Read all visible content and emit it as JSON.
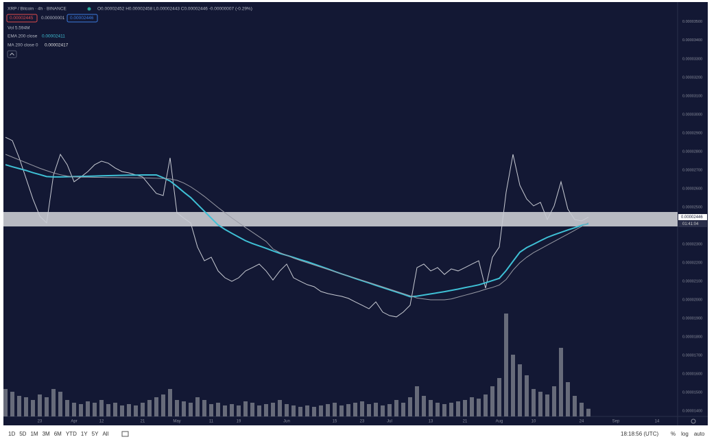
{
  "header": {
    "ohlc": "O0.00002452 H0.00002458 L0.00002443 C0.00002446 -0.00000007 (-0.29%)",
    "sell": "0.00002445",
    "spread": "0.00000001",
    "buy": "0.00002446",
    "volume": "Vol 5.594M",
    "ema_value": "0.00002411",
    "ma_value": "0.00002417"
  },
  "price_tag": "0.00002446",
  "countdown": "01:41:04",
  "toolbar": {
    "ranges": [
      "1D",
      "5D",
      "1M",
      "3M",
      "6M",
      "YTD",
      "1Y",
      "5Y",
      "All"
    ],
    "clock": "18:18:56 (UTC)",
    "options": [
      "%",
      "log",
      "auto"
    ]
  },
  "chart_data": {
    "type": "line",
    "categories": [
      null,
      null,
      null,
      null,
      null,
      "23",
      null,
      null,
      null,
      null,
      "Apr",
      null,
      null,
      null,
      "12",
      null,
      null,
      null,
      null,
      null,
      "21",
      null,
      null,
      null,
      null,
      "May",
      null,
      null,
      null,
      null,
      "11",
      null,
      null,
      null,
      "19",
      null,
      null,
      null,
      null,
      null,
      null,
      "Jun",
      null,
      null,
      null,
      null,
      null,
      null,
      "15",
      null,
      null,
      null,
      "23",
      null,
      null,
      null,
      "Jul",
      null,
      null,
      null,
      null,
      null,
      "13",
      null,
      null,
      null,
      null,
      "21",
      null,
      null,
      null,
      null,
      "Aug",
      null,
      null,
      null,
      null,
      "10",
      null,
      null,
      null,
      null,
      null,
      null,
      "24",
      null,
      null,
      null,
      null,
      "Sep",
      null,
      null,
      null,
      null,
      null,
      "14"
    ],
    "series": [
      {
        "name": "XRP / Bitcoin · 4h · BINANCE",
        "color": "#c9ccd4",
        "values": [
          2.877e-05,
          2.859e-05,
          2.766e-05,
          2.655e-05,
          2.544e-05,
          2.452e-05,
          2.415e-05,
          2.674e-05,
          2.785e-05,
          2.729e-05,
          2.637e-05,
          2.663e-05,
          2.692e-05,
          2.729e-05,
          2.748e-05,
          2.737e-05,
          2.711e-05,
          2.692e-05,
          2.685e-05,
          2.674e-05,
          2.663e-05,
          2.618e-05,
          2.574e-05,
          2.563e-05,
          2.766e-05,
          2.47e-05,
          2.441e-05,
          2.415e-05,
          2.285e-05,
          2.211e-05,
          2.23e-05,
          2.156e-05,
          2.119e-05,
          2.1e-05,
          2.119e-05,
          2.156e-05,
          2.174e-05,
          2.193e-05,
          2.156e-05,
          2.107e-05,
          2.156e-05,
          2.193e-05,
          2.119e-05,
          2.1e-05,
          2.082e-05,
          2.071e-05,
          2.045e-05,
          2.034e-05,
          2.026e-05,
          2.019e-05,
          2.008e-05,
          1.989e-05,
          1.971e-05,
          1.952e-05,
          1.989e-05,
          1.934e-05,
          1.915e-05,
          1.908e-05,
          1.934e-05,
          1.971e-05,
          2.174e-05,
          2.193e-05,
          2.156e-05,
          2.174e-05,
          2.137e-05,
          2.167e-05,
          2.156e-05,
          2.174e-05,
          2.193e-05,
          2.211e-05,
          2.063e-05,
          2.23e-05,
          2.285e-05,
          2.581e-05,
          2.785e-05,
          2.618e-05,
          2.544e-05,
          2.507e-05,
          2.526e-05,
          2.433e-05,
          2.507e-05,
          2.637e-05,
          2.489e-05,
          2.433e-05,
          2.426e-05,
          2.446e-05,
          null,
          null,
          null,
          null,
          null,
          null,
          null,
          null,
          null,
          null
        ]
      },
      {
        "name": "EMA 200 close",
        "color": "#3fc1d6",
        "values": [
          2.729e-05,
          2.718e-05,
          2.708e-05,
          2.698e-05,
          2.686e-05,
          2.676e-05,
          2.665e-05,
          2.663e-05,
          2.663e-05,
          2.664e-05,
          2.665e-05,
          2.666e-05,
          2.667e-05,
          2.668e-05,
          2.669e-05,
          2.67e-05,
          2.671e-05,
          2.672e-05,
          2.673e-05,
          2.673e-05,
          2.674e-05,
          2.674e-05,
          2.674e-05,
          2.659e-05,
          2.641e-05,
          2.612e-05,
          2.581e-05,
          2.552e-05,
          2.515e-05,
          2.478e-05,
          2.441e-05,
          2.404e-05,
          2.38e-05,
          2.359e-05,
          2.339e-05,
          2.319e-05,
          2.304e-05,
          2.291e-05,
          2.278e-05,
          2.264e-05,
          2.251e-05,
          2.24e-05,
          2.229e-05,
          2.217e-05,
          2.206e-05,
          2.193e-05,
          2.18e-05,
          2.167e-05,
          2.153e-05,
          2.14e-05,
          2.128e-05,
          2.115e-05,
          2.103e-05,
          2.091e-05,
          2.078e-05,
          2.066e-05,
          2.054e-05,
          2.042e-05,
          2.03e-05,
          2.017e-05,
          2.02e-05,
          2.026e-05,
          2.032e-05,
          2.038e-05,
          2.044e-05,
          2.051e-05,
          2.058e-05,
          2.066e-05,
          2.073e-05,
          2.081e-05,
          2.092e-05,
          2.104e-05,
          2.116e-05,
          2.158e-05,
          2.208e-05,
          2.257e-05,
          2.282e-05,
          2.3e-05,
          2.319e-05,
          2.337e-05,
          2.351e-05,
          2.364e-05,
          2.377e-05,
          2.389e-05,
          2.402e-05,
          2.411e-05,
          null,
          null,
          null,
          null,
          null,
          null,
          null,
          null,
          null,
          null
        ]
      },
      {
        "name": "MA 200 close 0",
        "color": "#9a9ca6",
        "values": [
          2.785e-05,
          2.77e-05,
          2.755e-05,
          2.74e-05,
          2.725e-05,
          2.71e-05,
          2.697e-05,
          2.685e-05,
          2.675e-05,
          2.668e-05,
          2.663e-05,
          2.662e-05,
          2.662e-05,
          2.661e-05,
          2.661e-05,
          2.66e-05,
          2.66e-05,
          2.659e-05,
          2.659e-05,
          2.658e-05,
          2.658e-05,
          2.657e-05,
          2.656e-05,
          2.655e-05,
          2.652e-05,
          2.645e-05,
          2.63e-05,
          2.61e-05,
          2.585e-05,
          2.558e-05,
          2.528e-05,
          2.498e-05,
          2.47e-05,
          2.442e-05,
          2.416e-05,
          2.39e-05,
          2.365e-05,
          2.34e-05,
          2.315e-05,
          2.275e-05,
          2.255e-05,
          2.24e-05,
          2.225e-05,
          2.212e-05,
          2.2e-05,
          2.188e-05,
          2.176e-05,
          2.164e-05,
          2.152e-05,
          2.14e-05,
          2.129e-05,
          2.118e-05,
          2.106e-05,
          2.094e-05,
          2.082e-05,
          2.07e-05,
          2.058e-05,
          2.046e-05,
          2.034e-05,
          2.022e-05,
          2.01e-05,
          2.005e-05,
          2e-05,
          2e-05,
          2e-05,
          2.005e-05,
          2.015e-05,
          2.025e-05,
          2.035e-05,
          2.045e-05,
          2.057e-05,
          2.067e-05,
          2.08e-05,
          2.11e-05,
          2.16e-05,
          2.2e-05,
          2.23e-05,
          2.255e-05,
          2.275e-05,
          2.295e-05,
          2.315e-05,
          2.335e-05,
          2.355e-05,
          2.375e-05,
          2.396e-05,
          2.417e-05,
          null,
          null,
          null,
          null,
          null,
          null,
          null,
          null,
          null,
          null
        ]
      }
    ],
    "volume": {
      "color": "#8c8f99",
      "values": [
        20,
        18,
        15,
        14,
        12,
        16,
        14,
        20,
        18,
        12,
        10,
        9,
        11,
        10,
        12,
        9,
        10,
        8,
        9,
        8,
        10,
        12,
        14,
        16,
        20,
        12,
        11,
        10,
        14,
        12,
        9,
        10,
        8,
        9,
        8,
        11,
        10,
        8,
        9,
        10,
        12,
        9,
        8,
        7,
        8,
        7,
        8,
        9,
        10,
        8,
        9,
        10,
        11,
        9,
        10,
        8,
        9,
        12,
        10,
        14,
        22,
        15,
        12,
        10,
        9,
        10,
        11,
        12,
        14,
        13,
        16,
        22,
        28,
        75,
        45,
        38,
        30,
        20,
        18,
        16,
        22,
        50,
        25,
        15,
        10,
        5.594,
        null,
        null,
        null,
        null,
        null,
        null,
        null,
        null,
        null,
        null
      ]
    },
    "zone": [
      2.396e-05,
      2.474e-05
    ],
    "ylim": [
      1.371e-05,
      3.588e-05
    ],
    "yticks": [
      {
        "value": 1.4e-05,
        "label": "0.00001400"
      },
      {
        "value": 1.5e-05,
        "label": "0.00001500"
      },
      {
        "value": 1.6e-05,
        "label": "0.00001600"
      },
      {
        "value": 1.7e-05,
        "label": "0.00001700"
      },
      {
        "value": 1.8e-05,
        "label": "0.00001800"
      },
      {
        "value": 1.9e-05,
        "label": "0.00001900"
      },
      {
        "value": 2e-05,
        "label": "0.00002000"
      },
      {
        "value": 2.1e-05,
        "label": "0.00002100"
      },
      {
        "value": 2.2e-05,
        "label": "0.00002200"
      },
      {
        "value": 2.3e-05,
        "label": "0.00002300"
      },
      {
        "value": 2.5e-05,
        "label": "0.00002500"
      },
      {
        "value": 2.6e-05,
        "label": "0.00002600"
      },
      {
        "value": 2.7e-05,
        "label": "0.00002700"
      },
      {
        "value": 2.8e-05,
        "label": "0.00002800"
      },
      {
        "value": 2.9e-05,
        "label": "0.00002900"
      },
      {
        "value": 3e-05,
        "label": "0.00003000"
      },
      {
        "value": 3.1e-05,
        "label": "0.00003100"
      },
      {
        "value": 3.2e-05,
        "label": "0.00003200"
      },
      {
        "value": 3.3e-05,
        "label": "0.00003300"
      },
      {
        "value": 3.4e-05,
        "label": "0.00003400"
      },
      {
        "value": 3.5e-05,
        "label": "0.00003500"
      }
    ]
  }
}
